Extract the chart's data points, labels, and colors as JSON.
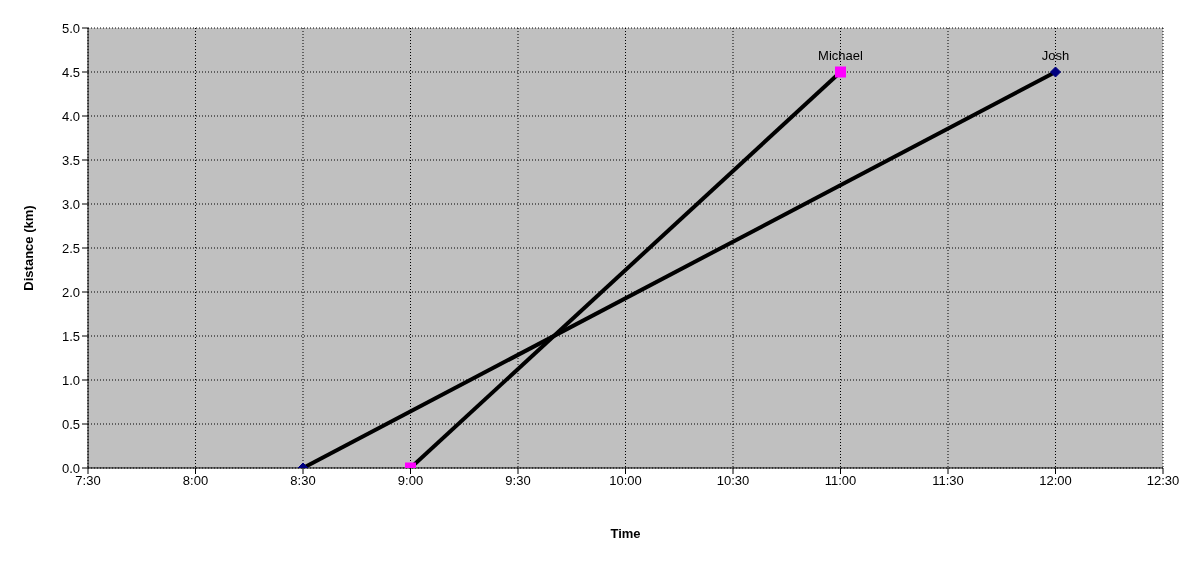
{
  "chart_data": {
    "type": "line",
    "xlabel": "Time",
    "ylabel": "Distance (km)",
    "xlim": [
      7.5,
      12.5
    ],
    "xticks": [
      {
        "value": 7.5,
        "label": "7:30"
      },
      {
        "value": 8,
        "label": "8:00"
      },
      {
        "value": 8.5,
        "label": "8:30"
      },
      {
        "value": 9,
        "label": "9:00"
      },
      {
        "value": 9.5,
        "label": "9:30"
      },
      {
        "value": 10,
        "label": "10:00"
      },
      {
        "value": 10.5,
        "label": "10:30"
      },
      {
        "value": 11,
        "label": "11:00"
      },
      {
        "value": 11.5,
        "label": "11:30"
      },
      {
        "value": 12,
        "label": "12:00"
      },
      {
        "value": 12.5,
        "label": "12:30"
      }
    ],
    "ylim": [
      0,
      5
    ],
    "yticks": [
      {
        "value": 0,
        "label": "0.0"
      },
      {
        "value": 0.5,
        "label": "0.5"
      },
      {
        "value": 1,
        "label": "1.0"
      },
      {
        "value": 1.5,
        "label": "1.5"
      },
      {
        "value": 2,
        "label": "2.0"
      },
      {
        "value": 2.5,
        "label": "2.5"
      },
      {
        "value": 3,
        "label": "3.0"
      },
      {
        "value": 3.5,
        "label": "3.5"
      },
      {
        "value": 4,
        "label": "4.0"
      },
      {
        "value": 4.5,
        "label": "4.5"
      },
      {
        "value": 5,
        "label": "5.0"
      }
    ],
    "grid": true,
    "legend": false,
    "line_style": "solid",
    "series": [
      {
        "name": "Josh",
        "color": "#000000",
        "colors": [
          "#000080",
          "#000080"
        ],
        "marker": "diamond",
        "x": [
          8.5,
          12
        ],
        "values": [
          0,
          4.5
        ]
      },
      {
        "name": "Michael",
        "color": "#000000",
        "colors": [
          "#ff00ff",
          "#ff00ff"
        ],
        "marker": "square",
        "x": [
          9,
          11
        ],
        "values": [
          0,
          4.5
        ]
      }
    ]
  }
}
